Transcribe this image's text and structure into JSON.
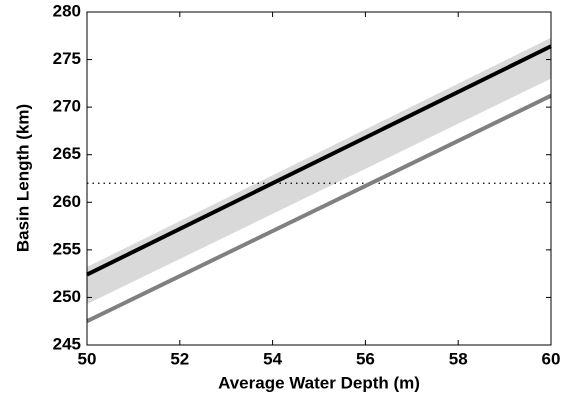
{
  "chart_data": {
    "type": "line",
    "xlabel": "Average Water Depth (m)",
    "ylabel": "Basin Length (km)",
    "xlim": [
      50,
      60
    ],
    "xticks": [
      50,
      52,
      54,
      56,
      58,
      60
    ],
    "ylim": [
      245,
      280
    ],
    "yticks": [
      245,
      250,
      255,
      260,
      265,
      270,
      275,
      280
    ],
    "band": {
      "x": [
        50,
        60
      ],
      "lower": [
        249.3,
        273.0
      ],
      "upper": [
        253.2,
        277.3
      ],
      "color": "#d9d9d9"
    },
    "series": [
      {
        "color": "#000000",
        "x": [
          50,
          60
        ],
        "values": [
          252.4,
          276.4
        ]
      },
      {
        "color": "#808080",
        "x": [
          50,
          60
        ],
        "values": [
          247.5,
          271.2
        ]
      }
    ],
    "hline": {
      "value": 262,
      "color": "#000000"
    }
  }
}
